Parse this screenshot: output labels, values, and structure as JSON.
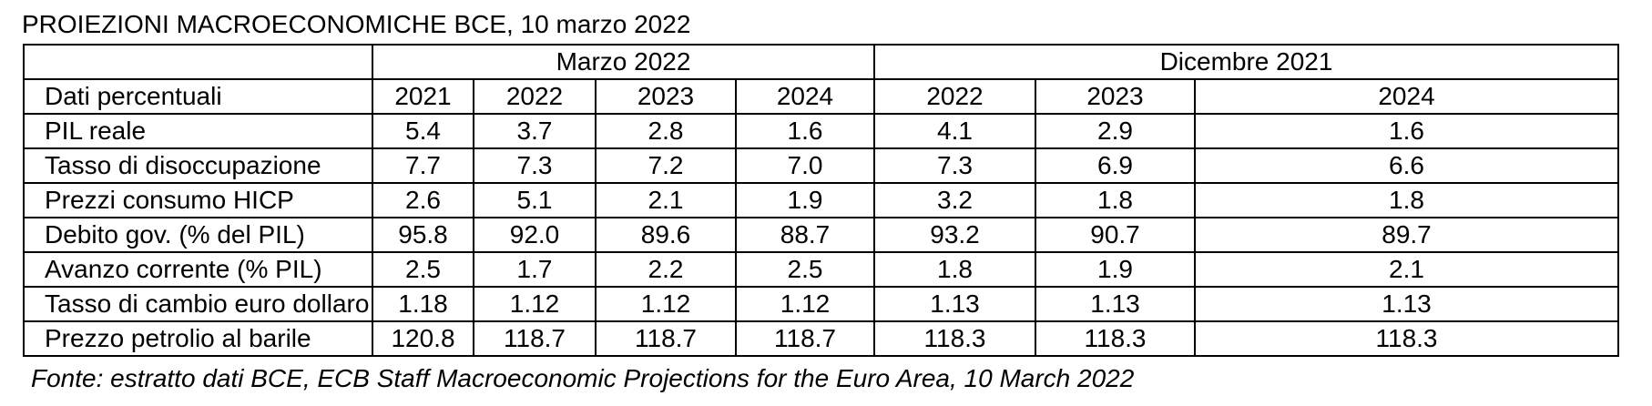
{
  "title": "PROIEZIONI MACROECONOMICHE BCE, 10 marzo 2022",
  "table": {
    "group_headers": {
      "left_blank": "",
      "group1": "Marzo 2022",
      "group2": "Dicembre 2021"
    },
    "column_header_label": "Dati percentuali",
    "years": [
      "2021",
      "2022",
      "2023",
      "2024",
      "2022",
      "2023",
      "2024"
    ],
    "rows": [
      {
        "label": "PIL reale",
        "values": [
          "5.4",
          "3.7",
          "2.8",
          "1.6",
          "4.1",
          "2.9",
          "1.6"
        ]
      },
      {
        "label": "Tasso di disoccupazione",
        "values": [
          "7.7",
          "7.3",
          "7.2",
          "7.0",
          "7.3",
          "6.9",
          "6.6"
        ]
      },
      {
        "label": "Prezzi consumo HICP",
        "values": [
          "2.6",
          "5.1",
          "2.1",
          "1.9",
          "3.2",
          "1.8",
          "1.8"
        ]
      },
      {
        "label": "Debito gov.  (% del PIL)",
        "values": [
          "95.8",
          "92.0",
          "89.6",
          "88.7",
          "93.2",
          "90.7",
          "89.7"
        ]
      },
      {
        "label": "Avanzo corrente (% PIL)",
        "values": [
          "2.5",
          "1.7",
          "2.2",
          "2.5",
          "1.8",
          "1.9",
          "2.1"
        ]
      },
      {
        "label": "Tasso di cambio euro dollaro",
        "values": [
          "1.18",
          "1.12",
          "1.12",
          "1.12",
          "1.13",
          "1.13",
          "1.13"
        ]
      },
      {
        "label": "Prezzo petrolio al barile",
        "values": [
          "120.8",
          "118.7",
          "118.7",
          "118.7",
          "118.3",
          "118.3",
          "118.3"
        ]
      }
    ]
  },
  "source": "Fonte: estratto dati BCE, ECB Staff Macroeconomic Projections for the Euro Area, 10 March 2022"
}
